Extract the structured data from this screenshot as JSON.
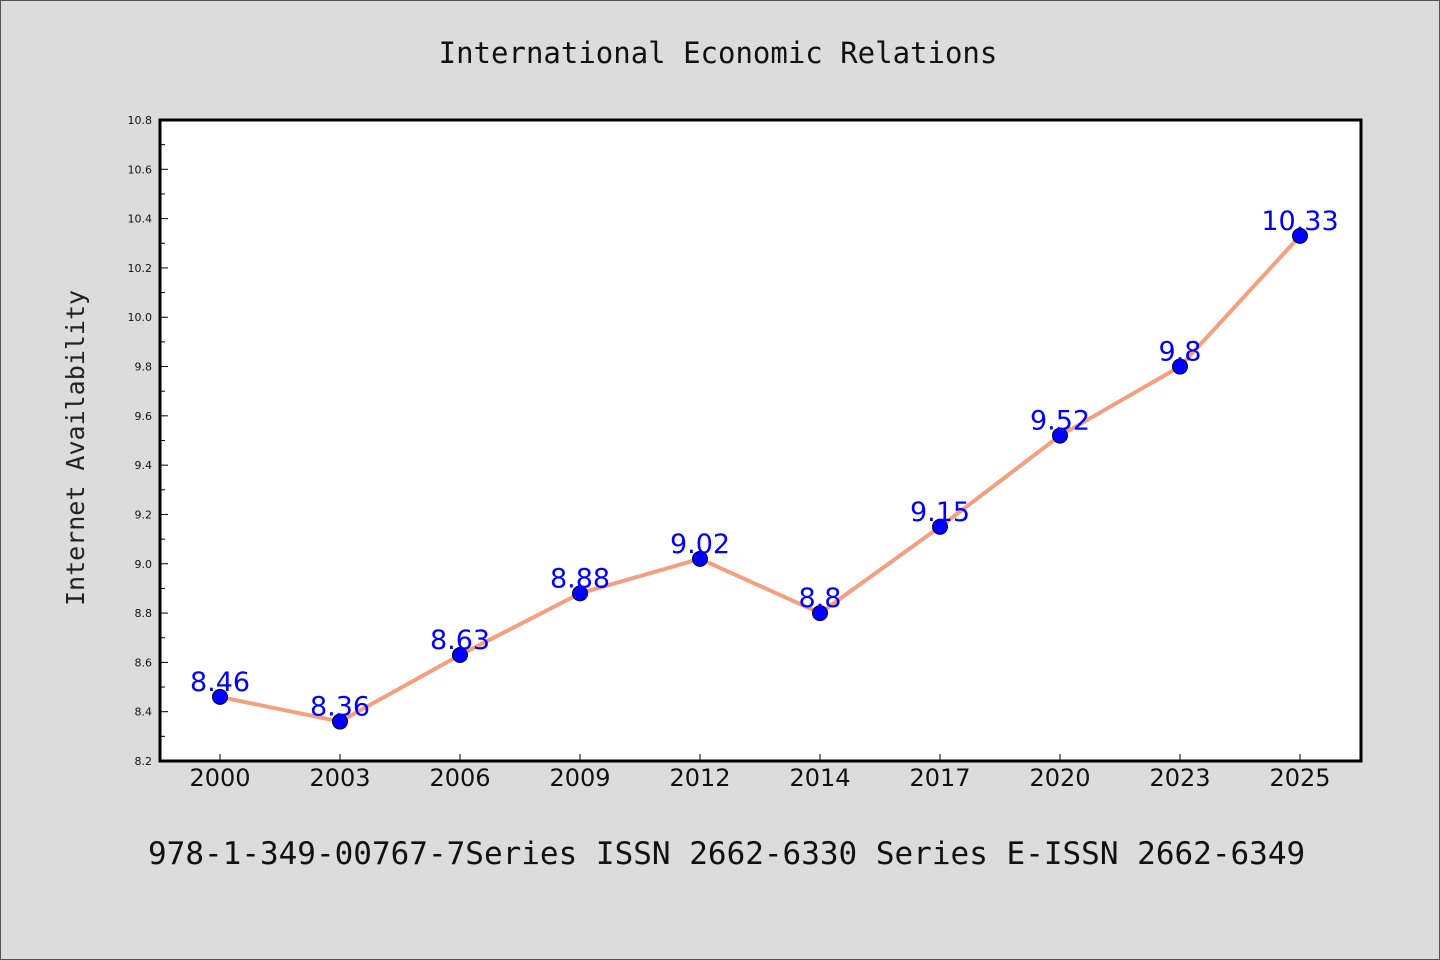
{
  "chart_data": {
    "type": "line",
    "title": "International Economic Relations",
    "xlabel": "",
    "ylabel": "Internet Availability",
    "categories": [
      "2000",
      "2003",
      "2006",
      "2009",
      "2012",
      "2014",
      "2017",
      "2020",
      "2023",
      "2025"
    ],
    "values": [
      8.46,
      8.36,
      8.63,
      8.88,
      9.02,
      8.8,
      9.15,
      9.52,
      9.8,
      10.33
    ],
    "data_labels": [
      "8.46",
      "8.36",
      "8.63",
      "8.88",
      "9.02",
      "8.8",
      "9.15",
      "9.52",
      "9.8",
      "10.33"
    ],
    "ylim": [
      8.2,
      10.8
    ],
    "yticks": [
      "8.2",
      "8.4",
      "8.6",
      "8.8",
      "9.0",
      "9.2",
      "9.4",
      "9.6",
      "9.8",
      "10.0",
      "10.2",
      "10.4",
      "10.6",
      "10.8"
    ],
    "grid": false,
    "line_color": "#f4a07e",
    "marker_color": "#0000ff",
    "label_color": "#0000ff"
  },
  "footer": {
    "text": "978-1-349-00767-7Series ISSN 2662-6330 Series E-ISSN 2662-6349"
  },
  "colors": {
    "background": "#dcdcdc",
    "plot_background": "#ffffff"
  }
}
